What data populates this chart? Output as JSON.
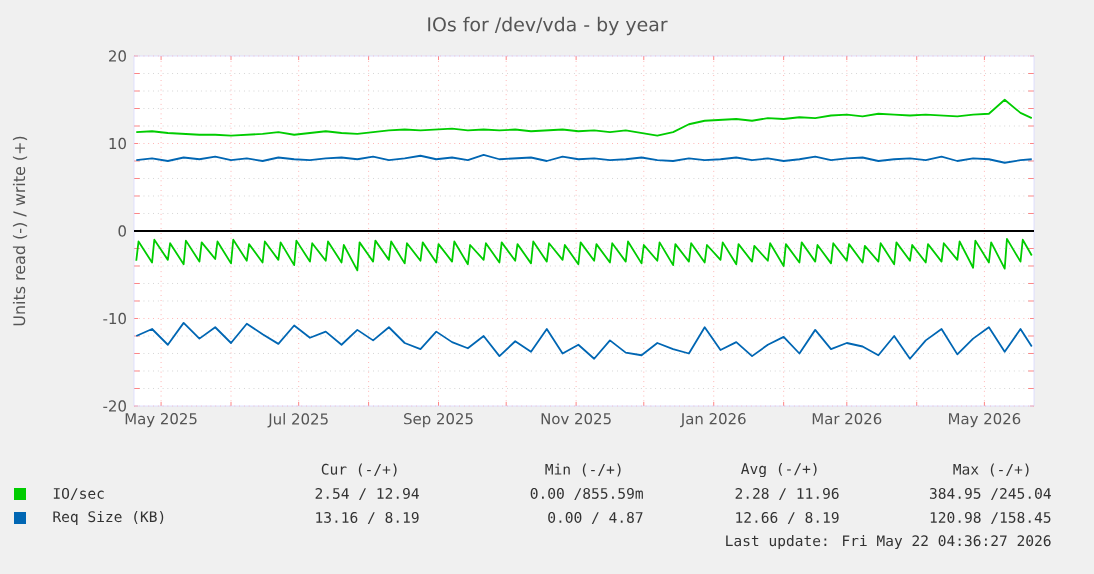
{
  "chart_data": {
    "type": "line",
    "title": "IOs for /dev/vda - by year",
    "ylabel": "Units read (-) / write (+)",
    "xlim": [
      "2025-04-19",
      "2026-05-23"
    ],
    "xticks": [
      {
        "value": "2025-05-01",
        "label": "May 2025"
      },
      {
        "value": "2025-06-01",
        "label": null
      },
      {
        "value": "2025-07-01",
        "label": "Jul 2025"
      },
      {
        "value": "2025-08-01",
        "label": null
      },
      {
        "value": "2025-09-01",
        "label": "Sep 2025"
      },
      {
        "value": "2025-10-01",
        "label": null
      },
      {
        "value": "2025-11-01",
        "label": "Nov 2025"
      },
      {
        "value": "2025-12-01",
        "label": null
      },
      {
        "value": "2026-01-01",
        "label": "Jan 2026"
      },
      {
        "value": "2026-02-01",
        "label": null
      },
      {
        "value": "2026-03-01",
        "label": "Mar 2026"
      },
      {
        "value": "2026-04-01",
        "label": null
      },
      {
        "value": "2026-05-01",
        "label": "May 2026"
      }
    ],
    "ylim": [
      -20,
      20
    ],
    "yticks": [
      -20,
      -10,
      0,
      10,
      20
    ],
    "grid": true,
    "legend": "bottom",
    "ref_lines": [
      {
        "axis": "y",
        "value": 0,
        "color": "#000000"
      }
    ],
    "x": [
      "2025-04-20",
      "2025-04-27",
      "2025-05-04",
      "2025-05-11",
      "2025-05-18",
      "2025-05-25",
      "2025-06-01",
      "2025-06-08",
      "2025-06-15",
      "2025-06-22",
      "2025-06-29",
      "2025-07-06",
      "2025-07-13",
      "2025-07-20",
      "2025-07-27",
      "2025-08-03",
      "2025-08-10",
      "2025-08-17",
      "2025-08-24",
      "2025-08-31",
      "2025-09-07",
      "2025-09-14",
      "2025-09-21",
      "2025-09-28",
      "2025-10-05",
      "2025-10-12",
      "2025-10-19",
      "2025-10-26",
      "2025-11-02",
      "2025-11-09",
      "2025-11-16",
      "2025-11-23",
      "2025-11-30",
      "2025-12-07",
      "2025-12-14",
      "2025-12-21",
      "2025-12-28",
      "2026-01-04",
      "2026-01-11",
      "2026-01-18",
      "2026-01-25",
      "2026-02-01",
      "2026-02-08",
      "2026-02-15",
      "2026-02-22",
      "2026-03-01",
      "2026-03-08",
      "2026-03-15",
      "2026-03-22",
      "2026-03-29",
      "2026-04-05",
      "2026-04-12",
      "2026-04-19",
      "2026-04-26",
      "2026-05-03",
      "2026-05-10",
      "2026-05-17",
      "2026-05-22"
    ],
    "series": [
      {
        "name": "IO/sec",
        "color": "#00cc00",
        "values": [
          11.3,
          11.4,
          11.2,
          11.1,
          11.0,
          11.0,
          10.9,
          11.0,
          11.1,
          11.3,
          11.0,
          11.2,
          11.4,
          11.2,
          11.1,
          11.3,
          11.5,
          11.6,
          11.5,
          11.6,
          11.7,
          11.5,
          11.6,
          11.5,
          11.6,
          11.4,
          11.5,
          11.6,
          11.4,
          11.5,
          11.3,
          11.5,
          11.2,
          10.9,
          11.3,
          12.2,
          12.6,
          12.7,
          12.8,
          12.6,
          12.9,
          12.8,
          13.0,
          12.9,
          13.2,
          13.3,
          13.1,
          13.4,
          13.3,
          13.2,
          13.3,
          13.2,
          13.1,
          13.3,
          13.4,
          15.0,
          13.5,
          12.9
        ]
      },
      {
        "color": "#00cc00",
        "x": [
          "2025-04-20",
          "2025-04-21",
          "2025-04-27",
          "2025-04-28",
          "2025-05-04",
          "2025-05-05",
          "2025-05-11",
          "2025-05-12",
          "2025-05-18",
          "2025-05-19",
          "2025-05-25",
          "2025-05-26",
          "2025-06-01",
          "2025-06-02",
          "2025-06-08",
          "2025-06-09",
          "2025-06-15",
          "2025-06-16",
          "2025-06-22",
          "2025-06-23",
          "2025-06-29",
          "2025-06-30",
          "2025-07-06",
          "2025-07-07",
          "2025-07-13",
          "2025-07-14",
          "2025-07-20",
          "2025-07-21",
          "2025-07-27",
          "2025-07-28",
          "2025-08-03",
          "2025-08-04",
          "2025-08-10",
          "2025-08-11",
          "2025-08-17",
          "2025-08-18",
          "2025-08-24",
          "2025-08-25",
          "2025-08-31",
          "2025-09-01",
          "2025-09-07",
          "2025-09-08",
          "2025-09-14",
          "2025-09-15",
          "2025-09-21",
          "2025-09-22",
          "2025-09-28",
          "2025-09-29",
          "2025-10-05",
          "2025-10-06",
          "2025-10-12",
          "2025-10-13",
          "2025-10-19",
          "2025-10-20",
          "2025-10-26",
          "2025-10-27",
          "2025-11-02",
          "2025-11-03",
          "2025-11-09",
          "2025-11-10",
          "2025-11-16",
          "2025-11-17",
          "2025-11-23",
          "2025-11-24",
          "2025-11-30",
          "2025-12-01",
          "2025-12-07",
          "2025-12-08",
          "2025-12-14",
          "2025-12-15",
          "2025-12-21",
          "2025-12-22",
          "2025-12-28",
          "2025-12-29",
          "2026-01-04",
          "2026-01-05",
          "2026-01-11",
          "2026-01-12",
          "2026-01-18",
          "2026-01-19",
          "2026-01-25",
          "2026-01-26",
          "2026-02-01",
          "2026-02-02",
          "2026-02-08",
          "2026-02-09",
          "2026-02-15",
          "2026-02-16",
          "2026-02-22",
          "2026-02-23",
          "2026-03-01",
          "2026-03-02",
          "2026-03-08",
          "2026-03-09",
          "2026-03-15",
          "2026-03-16",
          "2026-03-22",
          "2026-03-23",
          "2026-03-29",
          "2026-03-30",
          "2026-04-05",
          "2026-04-06",
          "2026-04-12",
          "2026-04-13",
          "2026-04-19",
          "2026-04-20",
          "2026-04-26",
          "2026-04-27",
          "2026-05-03",
          "2026-05-04",
          "2026-05-10",
          "2026-05-11",
          "2026-05-17",
          "2026-05-18",
          "2026-05-22"
        ],
        "values": [
          -3.4,
          -1.2,
          -3.6,
          -1.0,
          -3.3,
          -1.4,
          -3.8,
          -1.1,
          -3.5,
          -1.3,
          -3.2,
          -1.2,
          -3.7,
          -1.0,
          -3.4,
          -1.5,
          -3.6,
          -1.2,
          -3.3,
          -1.3,
          -3.9,
          -1.1,
          -3.5,
          -1.4,
          -3.4,
          -1.2,
          -3.6,
          -1.6,
          -4.5,
          -1.3,
          -3.5,
          -1.1,
          -3.3,
          -1.2,
          -3.7,
          -1.4,
          -3.4,
          -1.3,
          -3.6,
          -1.5,
          -3.5,
          -1.2,
          -3.8,
          -1.6,
          -3.3,
          -1.4,
          -3.6,
          -1.3,
          -3.4,
          -1.5,
          -3.7,
          -1.2,
          -3.5,
          -1.4,
          -3.3,
          -1.6,
          -3.8,
          -1.3,
          -3.4,
          -1.5,
          -3.6,
          -1.4,
          -3.5,
          -1.2,
          -3.7,
          -1.6,
          -3.4,
          -1.3,
          -3.9,
          -1.5,
          -3.5,
          -1.4,
          -3.6,
          -1.6,
          -3.3,
          -1.3,
          -3.8,
          -1.5,
          -3.5,
          -1.7,
          -3.4,
          -1.4,
          -4.0,
          -1.5,
          -3.6,
          -1.3,
          -3.5,
          -1.6,
          -3.7,
          -1.4,
          -3.4,
          -1.5,
          -3.6,
          -1.7,
          -3.5,
          -1.4,
          -3.8,
          -1.3,
          -3.4,
          -1.6,
          -3.6,
          -1.5,
          -3.5,
          -1.4,
          -3.3,
          -1.2,
          -4.2,
          -1.1,
          -3.6,
          -1.3,
          -4.3,
          -0.9,
          -3.5,
          -1.0,
          -2.8
        ]
      },
      {
        "name": "Req Size (KB)",
        "color": "#0066b3",
        "values": [
          8.1,
          8.3,
          8.0,
          8.4,
          8.2,
          8.5,
          8.1,
          8.3,
          8.0,
          8.4,
          8.2,
          8.1,
          8.3,
          8.4,
          8.2,
          8.5,
          8.1,
          8.3,
          8.6,
          8.2,
          8.4,
          8.1,
          8.7,
          8.2,
          8.3,
          8.4,
          8.0,
          8.5,
          8.2,
          8.3,
          8.1,
          8.2,
          8.4,
          8.1,
          8.0,
          8.3,
          8.1,
          8.2,
          8.4,
          8.1,
          8.3,
          8.0,
          8.2,
          8.5,
          8.1,
          8.3,
          8.4,
          8.0,
          8.2,
          8.3,
          8.1,
          8.5,
          8.0,
          8.3,
          8.2,
          7.8,
          8.1,
          8.2
        ]
      },
      {
        "color": "#0066b3",
        "values": [
          -12.0,
          -11.2,
          -13.0,
          -10.5,
          -12.3,
          -11.0,
          -12.8,
          -10.6,
          -11.8,
          -12.9,
          -10.8,
          -12.2,
          -11.5,
          -13.0,
          -11.3,
          -12.5,
          -11.0,
          -12.8,
          -13.5,
          -11.5,
          -12.7,
          -13.4,
          -12.0,
          -14.3,
          -12.6,
          -13.8,
          -11.2,
          -14.0,
          -13.0,
          -14.6,
          -12.5,
          -13.9,
          -14.2,
          -12.8,
          -13.5,
          -14.0,
          -11.0,
          -13.6,
          -12.7,
          -14.3,
          -13.0,
          -12.1,
          -14.0,
          -11.3,
          -13.5,
          -12.8,
          -13.2,
          -14.2,
          -12.0,
          -14.6,
          -12.5,
          -11.2,
          -14.1,
          -12.3,
          -11.0,
          -13.8,
          -11.2,
          -13.2
        ]
      }
    ],
    "annotations": [
      "Cur (-/+)",
      "Min (-/+)",
      "Avg (-/+)",
      "Max (-/+)",
      "2.54 / 12.94",
      "0.00 /855.59m",
      "2.28 / 11.96",
      "384.95 /245.04",
      "13.16 / 8.19",
      "0.00 / 4.87",
      "12.66 / 8.19",
      "120.98 /158.45",
      "Last update: Fri May 22 04:36:27 2026"
    ]
  }
}
